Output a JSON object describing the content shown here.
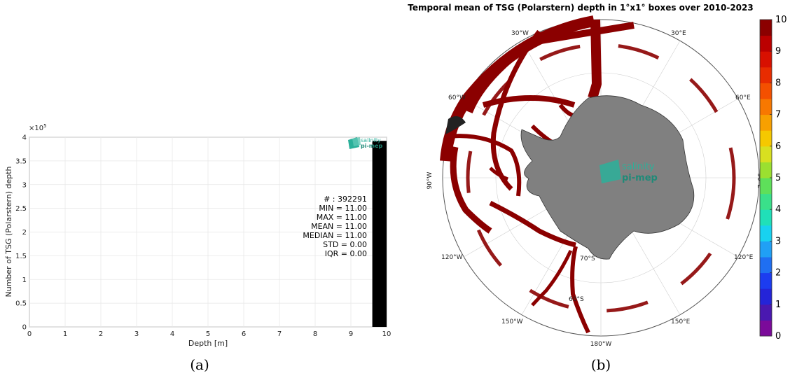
{
  "chart_data": [
    {
      "type": "bar",
      "panel_caption": "(a)",
      "xlabel": "Depth [m]",
      "ylabel": "Number of TSG (Polarstern) depth",
      "y_exponent_label": "×10",
      "y_exponent_power": "5",
      "xlim": [
        0,
        10
      ],
      "ylim": [
        0,
        4
      ],
      "x_ticks": [
        "0",
        "1",
        "2",
        "3",
        "4",
        "5",
        "6",
        "7",
        "8",
        "9",
        "10"
      ],
      "y_ticks": [
        "0",
        "0.5",
        "1",
        "1.5",
        "2",
        "2.5",
        "3",
        "3.5",
        "4"
      ],
      "bars": [
        {
          "x_start": 9.6,
          "x_end": 10.0,
          "value": 3.92291
        }
      ],
      "logo": {
        "line1": "salinity",
        "line2": "pi-mep"
      },
      "stats": [
        "# : 392291",
        "MIN = 11.00",
        "MAX =  11.00",
        "MEAN = 11.00",
        "MEDIAN = 11.00",
        "STD = 0.00",
        "IQR = 0.00"
      ]
    },
    {
      "type": "heatmap",
      "panel_caption": "(b)",
      "title": "Temporal mean of TSG (Polarstern) depth in 1°x1° boxes over 2010-2023",
      "colorbar": {
        "min": 0,
        "max": 10,
        "ticks": [
          "0",
          "1",
          "2",
          "3",
          "4",
          "5",
          "6",
          "7",
          "8",
          "9",
          "10"
        ]
      },
      "longitude_labels": [
        "30°W",
        "30°E",
        "60°W",
        "60°E",
        "90°W",
        "90°E",
        "120°W",
        "120°E",
        "150°W",
        "150°E",
        "180°W"
      ],
      "latitude_labels": [
        "70°S",
        "60°S"
      ],
      "observed_value": 10,
      "logo": {
        "line1": "salinity",
        "line2": "pi-mep"
      }
    }
  ]
}
